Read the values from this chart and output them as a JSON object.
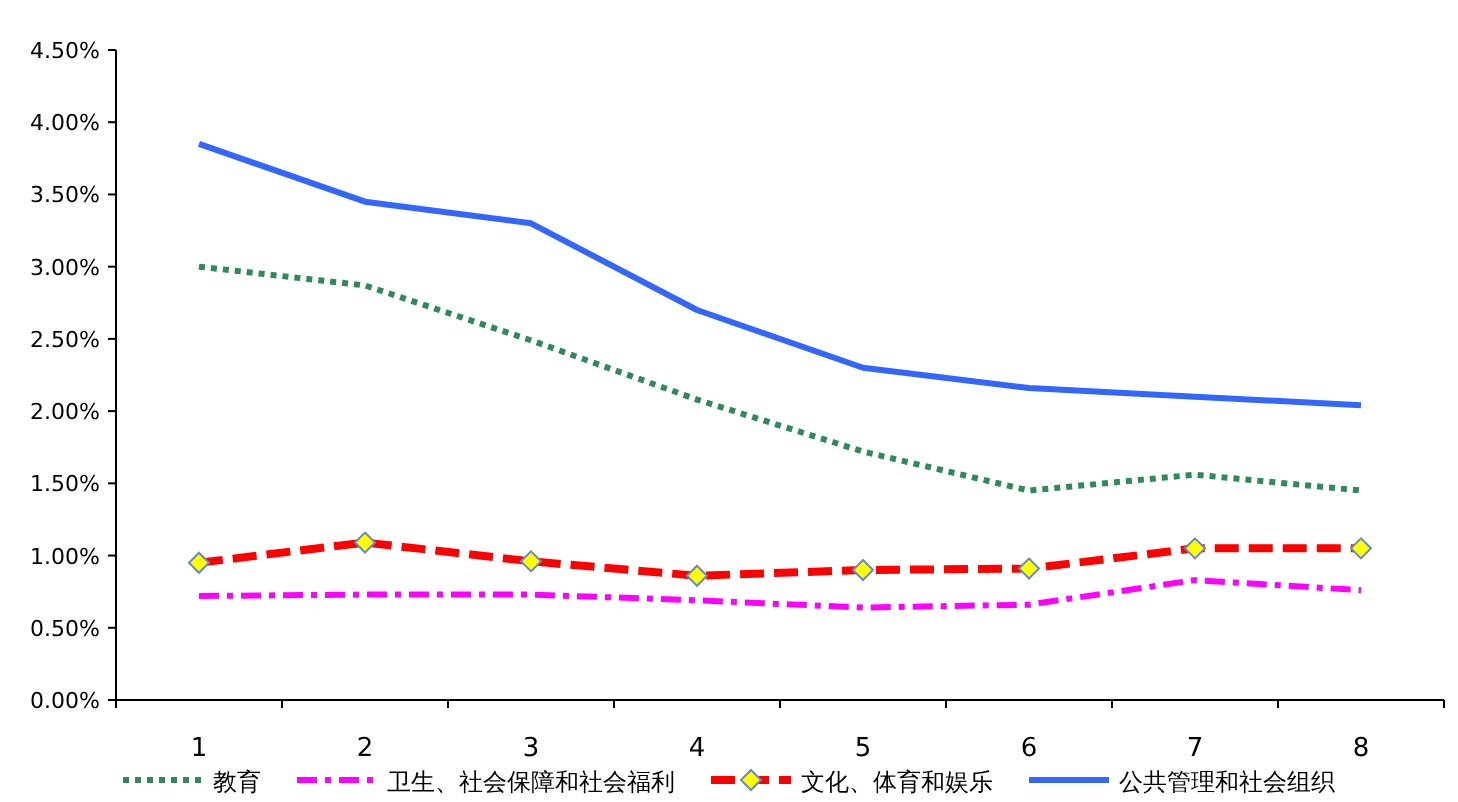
{
  "chart_data": {
    "type": "line",
    "categories": [
      "1",
      "2",
      "3",
      "4",
      "5",
      "6",
      "7",
      "8"
    ],
    "series": [
      {
        "name": "教育",
        "color": "#2e8b57",
        "line_style": "dotted",
        "marker": "none",
        "values": [
          3.0,
          2.87,
          2.49,
          2.08,
          1.72,
          1.45,
          1.56,
          1.45
        ]
      },
      {
        "name": "卫生、社会保障和社会福利",
        "color": "#ff00ff",
        "line_style": "dashdot",
        "marker": "none",
        "values": [
          0.72,
          0.73,
          0.73,
          0.69,
          0.64,
          0.66,
          0.83,
          0.76
        ]
      },
      {
        "name": "文化、体育和娱乐",
        "color": "#ff0000",
        "line_style": "dashed",
        "marker": "diamond",
        "values": [
          0.95,
          1.09,
          0.96,
          0.86,
          0.9,
          0.91,
          1.05,
          1.05
        ]
      },
      {
        "name": "公共管理和社会组织",
        "color": "#3366ff",
        "line_style": "solid",
        "marker": "none",
        "values": [
          3.85,
          3.45,
          3.3,
          2.7,
          2.3,
          2.16,
          2.1,
          2.04
        ]
      }
    ],
    "ylim": [
      0,
      4.5
    ],
    "yticks": [
      {
        "value": 0,
        "label": "0.00%"
      },
      {
        "value": 0.5,
        "label": "0.50%"
      },
      {
        "value": 1,
        "label": "1.00%"
      },
      {
        "value": 1.5,
        "label": "1.50%"
      },
      {
        "value": 2,
        "label": "2.00%"
      },
      {
        "value": 2.5,
        "label": "2.50%"
      },
      {
        "value": 3,
        "label": "3.00%"
      },
      {
        "value": 3.5,
        "label": "3.50%"
      },
      {
        "value": 4,
        "label": "4.00%"
      },
      {
        "value": 4.5,
        "label": "4.50%"
      }
    ],
    "grid": false,
    "legend": "bottom"
  }
}
